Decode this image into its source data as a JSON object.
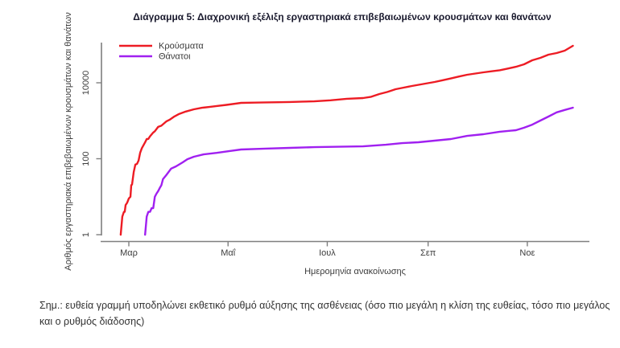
{
  "title": "Διάγραμμα 5: Διαχρονική εξέλιξη εργαστηριακά επιβεβαιωμένων κρουσμάτων και θανάτων",
  "note": "Σημ.: ευθεία γραμμή υποδηλώνει εκθετικό ρυθμό αύξησης της ασθένειας (όσο πιο μεγάλη η κλίση της ευθείας, τόσο πιο μεγάλος και ο ρυθμός διάδοσης)",
  "colors": {
    "cases_line": "#ed1c24",
    "deaths_line": "#a020f0",
    "axis": "#7f7f7f",
    "title_text": "#1a1a2e",
    "tick_text": "#3d3d3d"
  },
  "chart_data": {
    "type": "line",
    "title": "Διάγραμμα 5: Διαχρονική εξέλιξη εργαστηριακά επιβεβαιωμένων κρουσμάτων και θανάτων",
    "xlabel": "Ημερομηνία ανακοίνωσης",
    "ylabel": "Αριθμός εργαστηριακά επιβεβαιωμένων κρουσμάτων και θανάτων",
    "y_scale": "log10",
    "y_ticks": [
      1,
      100,
      10000
    ],
    "ylim": [
      1,
      115000
    ],
    "grid": false,
    "legend_position": "top-left-inside",
    "x_unit": "days since 1 Mar 2020 (x ticks = month starts, Mar–Nov 2020)",
    "x_ticks": [
      {
        "label": "Μαρ",
        "day": 0
      },
      {
        "label": "Μαΐ",
        "day": 61
      },
      {
        "label": "Ιουλ",
        "day": 122
      },
      {
        "label": "Σεπ",
        "day": 184
      },
      {
        "label": "Νοε",
        "day": 245
      }
    ],
    "xlim_days": [
      -17,
      284
    ],
    "series": [
      {
        "name": "Κρούσματα",
        "color": "#ed1c24",
        "points": [
          [
            -5,
            1
          ],
          [
            -4,
            3
          ],
          [
            -3,
            4
          ],
          [
            -2.5,
            4
          ],
          [
            -2,
            6
          ],
          [
            -1,
            7
          ],
          [
            0,
            9
          ],
          [
            1,
            10
          ],
          [
            1.5,
            20
          ],
          [
            2,
            21
          ],
          [
            3,
            45
          ],
          [
            4,
            70
          ],
          [
            5,
            73
          ],
          [
            6,
            90
          ],
          [
            7,
            145
          ],
          [
            8,
            190
          ],
          [
            10,
            270
          ],
          [
            11,
            330
          ],
          [
            12,
            331
          ],
          [
            13,
            390
          ],
          [
            15,
            490
          ],
          [
            16,
            530
          ],
          [
            18,
            690
          ],
          [
            20,
            740
          ],
          [
            23,
            960
          ],
          [
            25,
            1060
          ],
          [
            28,
            1300
          ],
          [
            31,
            1520
          ],
          [
            35,
            1750
          ],
          [
            40,
            2000
          ],
          [
            45,
            2200
          ],
          [
            50,
            2330
          ],
          [
            54,
            2450
          ],
          [
            60,
            2620
          ],
          [
            69,
            2960
          ],
          [
            77,
            3000
          ],
          [
            84,
            3050
          ],
          [
            92,
            3080
          ],
          [
            99,
            3120
          ],
          [
            107,
            3200
          ],
          [
            114,
            3250
          ],
          [
            124,
            3460
          ],
          [
            134,
            3800
          ],
          [
            144,
            3970
          ],
          [
            149,
            4280
          ],
          [
            154,
            5050
          ],
          [
            159,
            5750
          ],
          [
            164,
            6760
          ],
          [
            169,
            7470
          ],
          [
            174,
            8230
          ],
          [
            181,
            9280
          ],
          [
            188,
            10500
          ],
          [
            193,
            11700
          ],
          [
            198,
            13000
          ],
          [
            203,
            14600
          ],
          [
            208,
            16300
          ],
          [
            213,
            17500
          ],
          [
            218,
            18800
          ],
          [
            223,
            20100
          ],
          [
            228,
            21400
          ],
          [
            233,
            23700
          ],
          [
            238,
            26400
          ],
          [
            243,
            30700
          ],
          [
            248,
            39200
          ],
          [
            253,
            45400
          ],
          [
            258,
            55100
          ],
          [
            263,
            60800
          ],
          [
            268,
            70300
          ],
          [
            273,
            94000
          ]
        ]
      },
      {
        "name": "Θάνατοι",
        "color": "#a020f0",
        "points": [
          [
            10,
            1
          ],
          [
            11,
            3
          ],
          [
            12,
            4
          ],
          [
            13,
            4
          ],
          [
            14,
            5
          ],
          [
            15,
            5
          ],
          [
            16,
            10
          ],
          [
            17,
            12
          ],
          [
            18,
            14
          ],
          [
            19,
            17
          ],
          [
            20,
            20
          ],
          [
            21,
            29
          ],
          [
            23,
            37
          ],
          [
            26,
            55
          ],
          [
            29,
            63
          ],
          [
            33,
            80
          ],
          [
            36,
            97
          ],
          [
            40,
            113
          ],
          [
            46,
            130
          ],
          [
            54,
            143
          ],
          [
            62,
            160
          ],
          [
            69,
            175
          ],
          [
            84,
            185
          ],
          [
            99,
            193
          ],
          [
            114,
            202
          ],
          [
            129,
            207
          ],
          [
            144,
            212
          ],
          [
            158,
            234
          ],
          [
            168,
            258
          ],
          [
            178,
            272
          ],
          [
            188,
            300
          ],
          [
            198,
            330
          ],
          [
            208,
            400
          ],
          [
            218,
            443
          ],
          [
            228,
            515
          ],
          [
            238,
            565
          ],
          [
            243,
            655
          ],
          [
            248,
            790
          ],
          [
            253,
            1010
          ],
          [
            258,
            1290
          ],
          [
            263,
            1660
          ],
          [
            268,
            1930
          ],
          [
            273,
            2210
          ]
        ]
      }
    ]
  }
}
